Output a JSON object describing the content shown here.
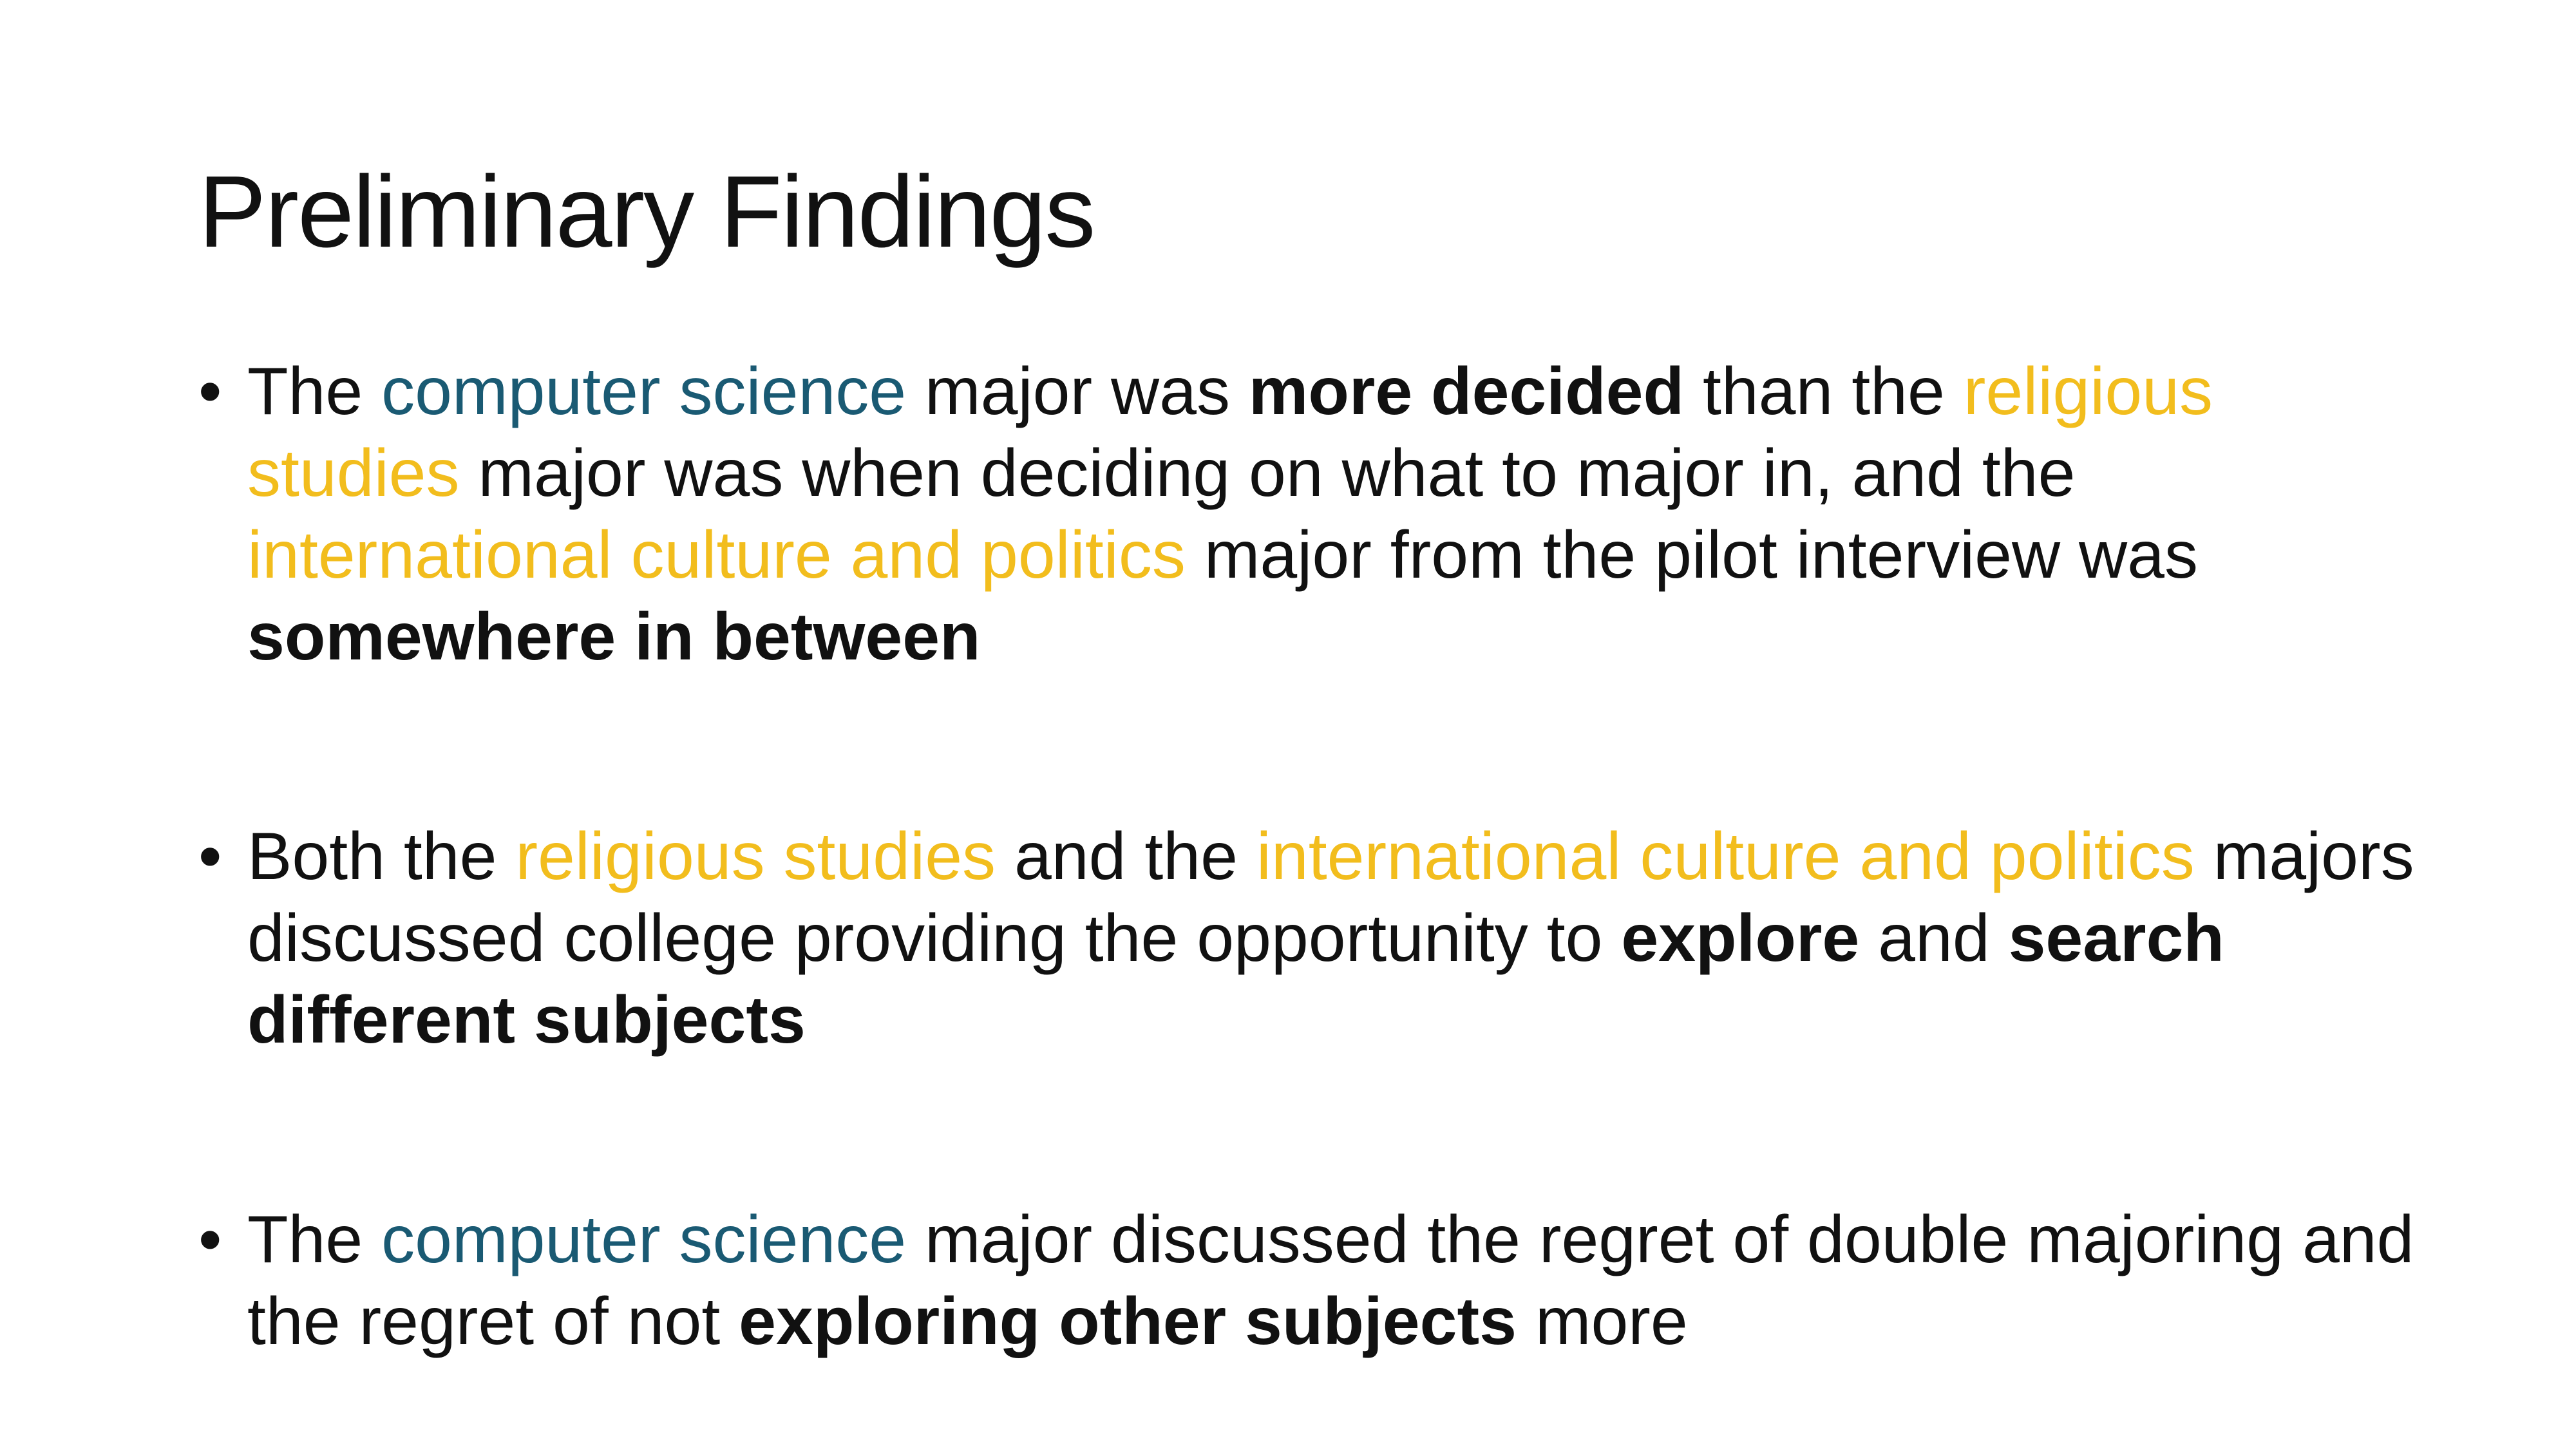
{
  "slide": {
    "title": "Preliminary Findings",
    "bullet_symbol": "•",
    "colors": {
      "computer_science": "#1a5a73",
      "other_majors": "#f2bd1d",
      "text": "#111111",
      "background": "#ffffff"
    },
    "bullets": [
      {
        "segments": [
          "The ",
          "computer science",
          " major was ",
          "more decided",
          " than the ",
          "religious studies",
          " major was when deciding on what to major in, and the ",
          "international culture and politics",
          " major from the pilot interview was ",
          "somewhere in between"
        ]
      },
      {
        "segments": [
          "Both the ",
          "religious studies",
          " and the ",
          "international culture and politics",
          " majors discussed college providing the opportunity to ",
          "explore",
          " and ",
          "search different subjects"
        ]
      },
      {
        "segments": [
          "The ",
          "computer science",
          " major discussed the regret of double majoring and the regret of not ",
          "exploring other subjects",
          " more"
        ]
      }
    ]
  }
}
